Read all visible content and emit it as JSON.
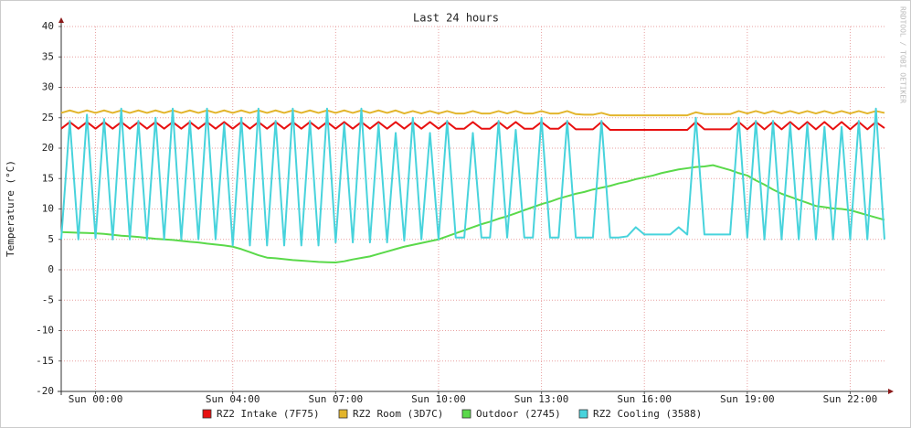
{
  "chart_data": {
    "type": "line",
    "title": "Last 24 hours",
    "y_label": "Temperature (°C)",
    "watermark": "RRDTOOL / TOBI OETIKER",
    "x": [
      -1,
      -0.75,
      -0.5,
      -0.25,
      0,
      0.25,
      0.5,
      0.75,
      1,
      1.25,
      1.5,
      1.75,
      2,
      2.25,
      2.5,
      2.75,
      3,
      3.25,
      3.5,
      3.75,
      4,
      4.25,
      4.5,
      4.75,
      5,
      5.25,
      5.5,
      5.75,
      6,
      6.25,
      6.5,
      6.75,
      7,
      7.25,
      7.5,
      7.75,
      8,
      8.25,
      8.5,
      8.75,
      9,
      9.25,
      9.5,
      9.75,
      10,
      10.25,
      10.5,
      10.75,
      11,
      11.25,
      11.5,
      11.75,
      12,
      12.25,
      12.5,
      12.75,
      13,
      13.25,
      13.5,
      13.75,
      14,
      14.25,
      14.5,
      14.75,
      15,
      15.25,
      15.5,
      15.75,
      16,
      16.25,
      16.5,
      16.75,
      17,
      17.25,
      17.5,
      17.75,
      18,
      18.25,
      18.5,
      18.75,
      19,
      19.25,
      19.5,
      19.75,
      20,
      20.25,
      20.5,
      20.75,
      21,
      21.25,
      21.5,
      21.75,
      22,
      22.25,
      22.5,
      22.75,
      23
    ],
    "xlim": [
      -1,
      23
    ],
    "xticks": [
      {
        "value": 0,
        "label": "Sun 00:00"
      },
      {
        "value": 4,
        "label": "Sun 04:00"
      },
      {
        "value": 7,
        "label": "Sun 07:00"
      },
      {
        "value": 10,
        "label": "Sun 10:00"
      },
      {
        "value": 13,
        "label": "Sun 13:00"
      },
      {
        "value": 16,
        "label": "Sun 16:00"
      },
      {
        "value": 19,
        "label": "Sun 19:00"
      },
      {
        "value": 22,
        "label": "Sun 22:00"
      }
    ],
    "ylim": [
      -20,
      40
    ],
    "yticks": [
      -20,
      -15,
      -10,
      -5,
      0,
      5,
      10,
      15,
      20,
      25,
      30,
      35,
      40
    ],
    "grid": true,
    "series": [
      {
        "name": "RZ2 Intake (7F75)",
        "color": "#e81010",
        "values": [
          23.2,
          24.3,
          23.2,
          24.3,
          23.2,
          24.3,
          23.2,
          24.3,
          23.2,
          24.3,
          23.2,
          24.3,
          23.2,
          24.3,
          23.2,
          24.3,
          23.2,
          24.3,
          23.2,
          24.3,
          23.2,
          24.3,
          23.2,
          24.3,
          23.2,
          24.3,
          23.2,
          24.3,
          23.2,
          24.3,
          23.2,
          24.3,
          23.2,
          24.3,
          23.2,
          24.3,
          23.2,
          24.3,
          23.2,
          24.3,
          23.2,
          24.3,
          23.2,
          24.3,
          23.2,
          24.3,
          23.2,
          23.2,
          24.3,
          23.2,
          23.2,
          24.3,
          23.2,
          24.3,
          23.2,
          23.2,
          24.3,
          23.2,
          23.2,
          24.3,
          23.1,
          23.1,
          23.1,
          24.3,
          23.0,
          23.0,
          23.0,
          23.0,
          23.0,
          23.0,
          23.0,
          23.0,
          23.0,
          23.0,
          24.3,
          23.1,
          23.1,
          23.1,
          23.1,
          24.3,
          23.1,
          24.3,
          23.1,
          24.3,
          23.1,
          24.3,
          23.1,
          24.3,
          23.1,
          24.3,
          23.1,
          24.3,
          23.1,
          24.3,
          23.1,
          24.3,
          23.3
        ]
      },
      {
        "name": "RZ2 Room (3D7C)",
        "color": "#e3b52c",
        "values": [
          25.8,
          26.2,
          25.8,
          26.2,
          25.8,
          26.2,
          25.8,
          26.2,
          25.8,
          26.2,
          25.8,
          26.2,
          25.8,
          26.2,
          25.8,
          26.2,
          25.8,
          26.2,
          25.8,
          26.2,
          25.8,
          26.2,
          25.8,
          26.2,
          25.8,
          26.2,
          25.8,
          26.2,
          25.8,
          26.2,
          25.8,
          26.2,
          25.8,
          26.2,
          25.8,
          26.2,
          25.8,
          26.2,
          25.8,
          26.2,
          25.7,
          26.1,
          25.7,
          26.1,
          25.7,
          26.1,
          25.7,
          25.7,
          26.1,
          25.7,
          25.7,
          26.1,
          25.7,
          26.1,
          25.7,
          25.7,
          26.1,
          25.7,
          25.7,
          26.1,
          25.6,
          25.5,
          25.5,
          25.8,
          25.4,
          25.4,
          25.4,
          25.4,
          25.4,
          25.4,
          25.4,
          25.4,
          25.4,
          25.4,
          25.9,
          25.6,
          25.6,
          25.6,
          25.6,
          26.1,
          25.7,
          26.1,
          25.7,
          26.1,
          25.7,
          26.1,
          25.7,
          26.1,
          25.7,
          26.1,
          25.7,
          26.1,
          25.7,
          26.1,
          25.7,
          26.1,
          25.8
        ]
      },
      {
        "name": "Outdoor (2745)",
        "color": "#5ad94a",
        "values": [
          6.2,
          6.15,
          6.1,
          6.05,
          6.0,
          5.9,
          5.75,
          5.6,
          5.5,
          5.4,
          5.25,
          5.1,
          5.0,
          4.9,
          4.75,
          4.6,
          4.5,
          4.3,
          4.15,
          4.0,
          3.8,
          3.4,
          2.9,
          2.4,
          2.0,
          1.9,
          1.75,
          1.6,
          1.5,
          1.4,
          1.3,
          1.25,
          1.2,
          1.4,
          1.7,
          1.95,
          2.2,
          2.6,
          3.0,
          3.4,
          3.8,
          4.1,
          4.4,
          4.7,
          5.0,
          5.5,
          6.0,
          6.5,
          7.0,
          7.5,
          7.9,
          8.4,
          8.8,
          9.3,
          9.8,
          10.3,
          10.8,
          11.2,
          11.7,
          12.1,
          12.5,
          12.8,
          13.2,
          13.5,
          13.8,
          14.2,
          14.5,
          14.9,
          15.2,
          15.5,
          15.9,
          16.2,
          16.5,
          16.7,
          16.9,
          17.0,
          17.2,
          16.8,
          16.4,
          15.9,
          15.5,
          14.7,
          14.0,
          13.2,
          12.5,
          12.0,
          11.5,
          11.0,
          10.5,
          10.3,
          10.1,
          10.0,
          9.8,
          9.4,
          9.0,
          8.6,
          8.2
        ]
      },
      {
        "name": "RZ2 Cooling (3588)",
        "color": "#48d3dc",
        "values": [
          5,
          24.5,
          5,
          25.5,
          5.2,
          24.8,
          5,
          26.5,
          5,
          24.5,
          5,
          25,
          5,
          26.5,
          5,
          24.5,
          5,
          26.5,
          5,
          24,
          4,
          25,
          4,
          26.5,
          4,
          24.5,
          4,
          26.5,
          4,
          24.5,
          4,
          26.5,
          4.5,
          24,
          4.5,
          26.5,
          4.5,
          24,
          4.5,
          22.5,
          4.8,
          25,
          5,
          22.5,
          5,
          24.5,
          5.3,
          5.3,
          22.5,
          5.3,
          5.3,
          24.5,
          5.3,
          23,
          5.3,
          5.3,
          25,
          5.3,
          5.3,
          24.5,
          5.3,
          5.3,
          5.3,
          24.5,
          5.3,
          5.3,
          5.5,
          7,
          5.8,
          5.8,
          5.8,
          5.8,
          7,
          5.8,
          25,
          5.8,
          5.8,
          5.8,
          5.8,
          25,
          5.3,
          24.5,
          5,
          24.5,
          5,
          24,
          5,
          24,
          5,
          23.5,
          5,
          23.5,
          5,
          24.5,
          5,
          26.5,
          5
        ]
      }
    ]
  }
}
